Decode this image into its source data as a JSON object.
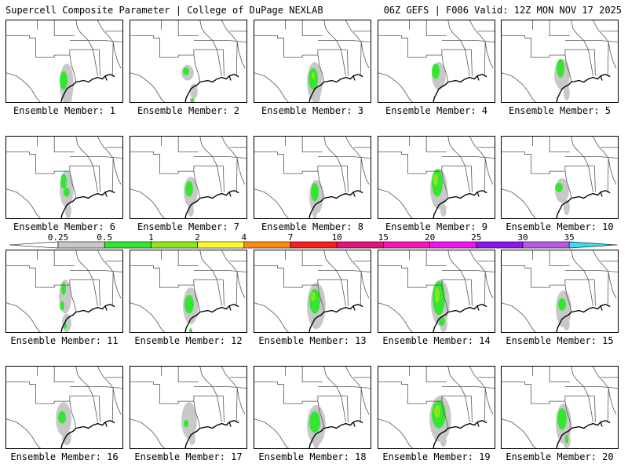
{
  "header": {
    "left": "Supercell Composite Parameter | College of DuPage NEXLAB",
    "right": "06Z GEFS | F006 Valid: 12Z MON NOV 17 2025"
  },
  "member_label_prefix": "Ensemble Member: ",
  "members": [
    {
      "label": "Ensemble Member: 1"
    },
    {
      "label": "Ensemble Member: 2"
    },
    {
      "label": "Ensemble Member: 3"
    },
    {
      "label": "Ensemble Member: 4"
    },
    {
      "label": "Ensemble Member: 5"
    },
    {
      "label": "Ensemble Member: 6"
    },
    {
      "label": "Ensemble Member: 7"
    },
    {
      "label": "Ensemble Member: 8"
    },
    {
      "label": "Ensemble Member: 9"
    },
    {
      "label": "Ensemble Member: 10"
    },
    {
      "label": "Ensemble Member: 11"
    },
    {
      "label": "Ensemble Member: 12"
    },
    {
      "label": "Ensemble Member: 13"
    },
    {
      "label": "Ensemble Member: 14"
    },
    {
      "label": "Ensemble Member: 15"
    },
    {
      "label": "Ensemble Member: 16"
    },
    {
      "label": "Ensemble Member: 17"
    },
    {
      "label": "Ensemble Member: 18"
    },
    {
      "label": "Ensemble Member: 19"
    },
    {
      "label": "Ensemble Member: 20"
    }
  ],
  "colorbar": {
    "ticks": [
      "0.25",
      "0.5",
      "1",
      "2",
      "4",
      "7",
      "10",
      "15",
      "20",
      "25",
      "30",
      "35"
    ],
    "colors": [
      "#c8c8c8",
      "#32e632",
      "#8ce61e",
      "#fafa32",
      "#fa8c14",
      "#fa1e1e",
      "#e6147a",
      "#fa14b4",
      "#f014f0",
      "#8c14f0",
      "#b45ae6",
      "#3cdcf0"
    ]
  },
  "colors": {
    "shade_low": "#c8c8c8",
    "shade_mid": "#32e632",
    "shade_high": "#8ce61e",
    "coast": "#000000",
    "state_lines": "#555555"
  }
}
